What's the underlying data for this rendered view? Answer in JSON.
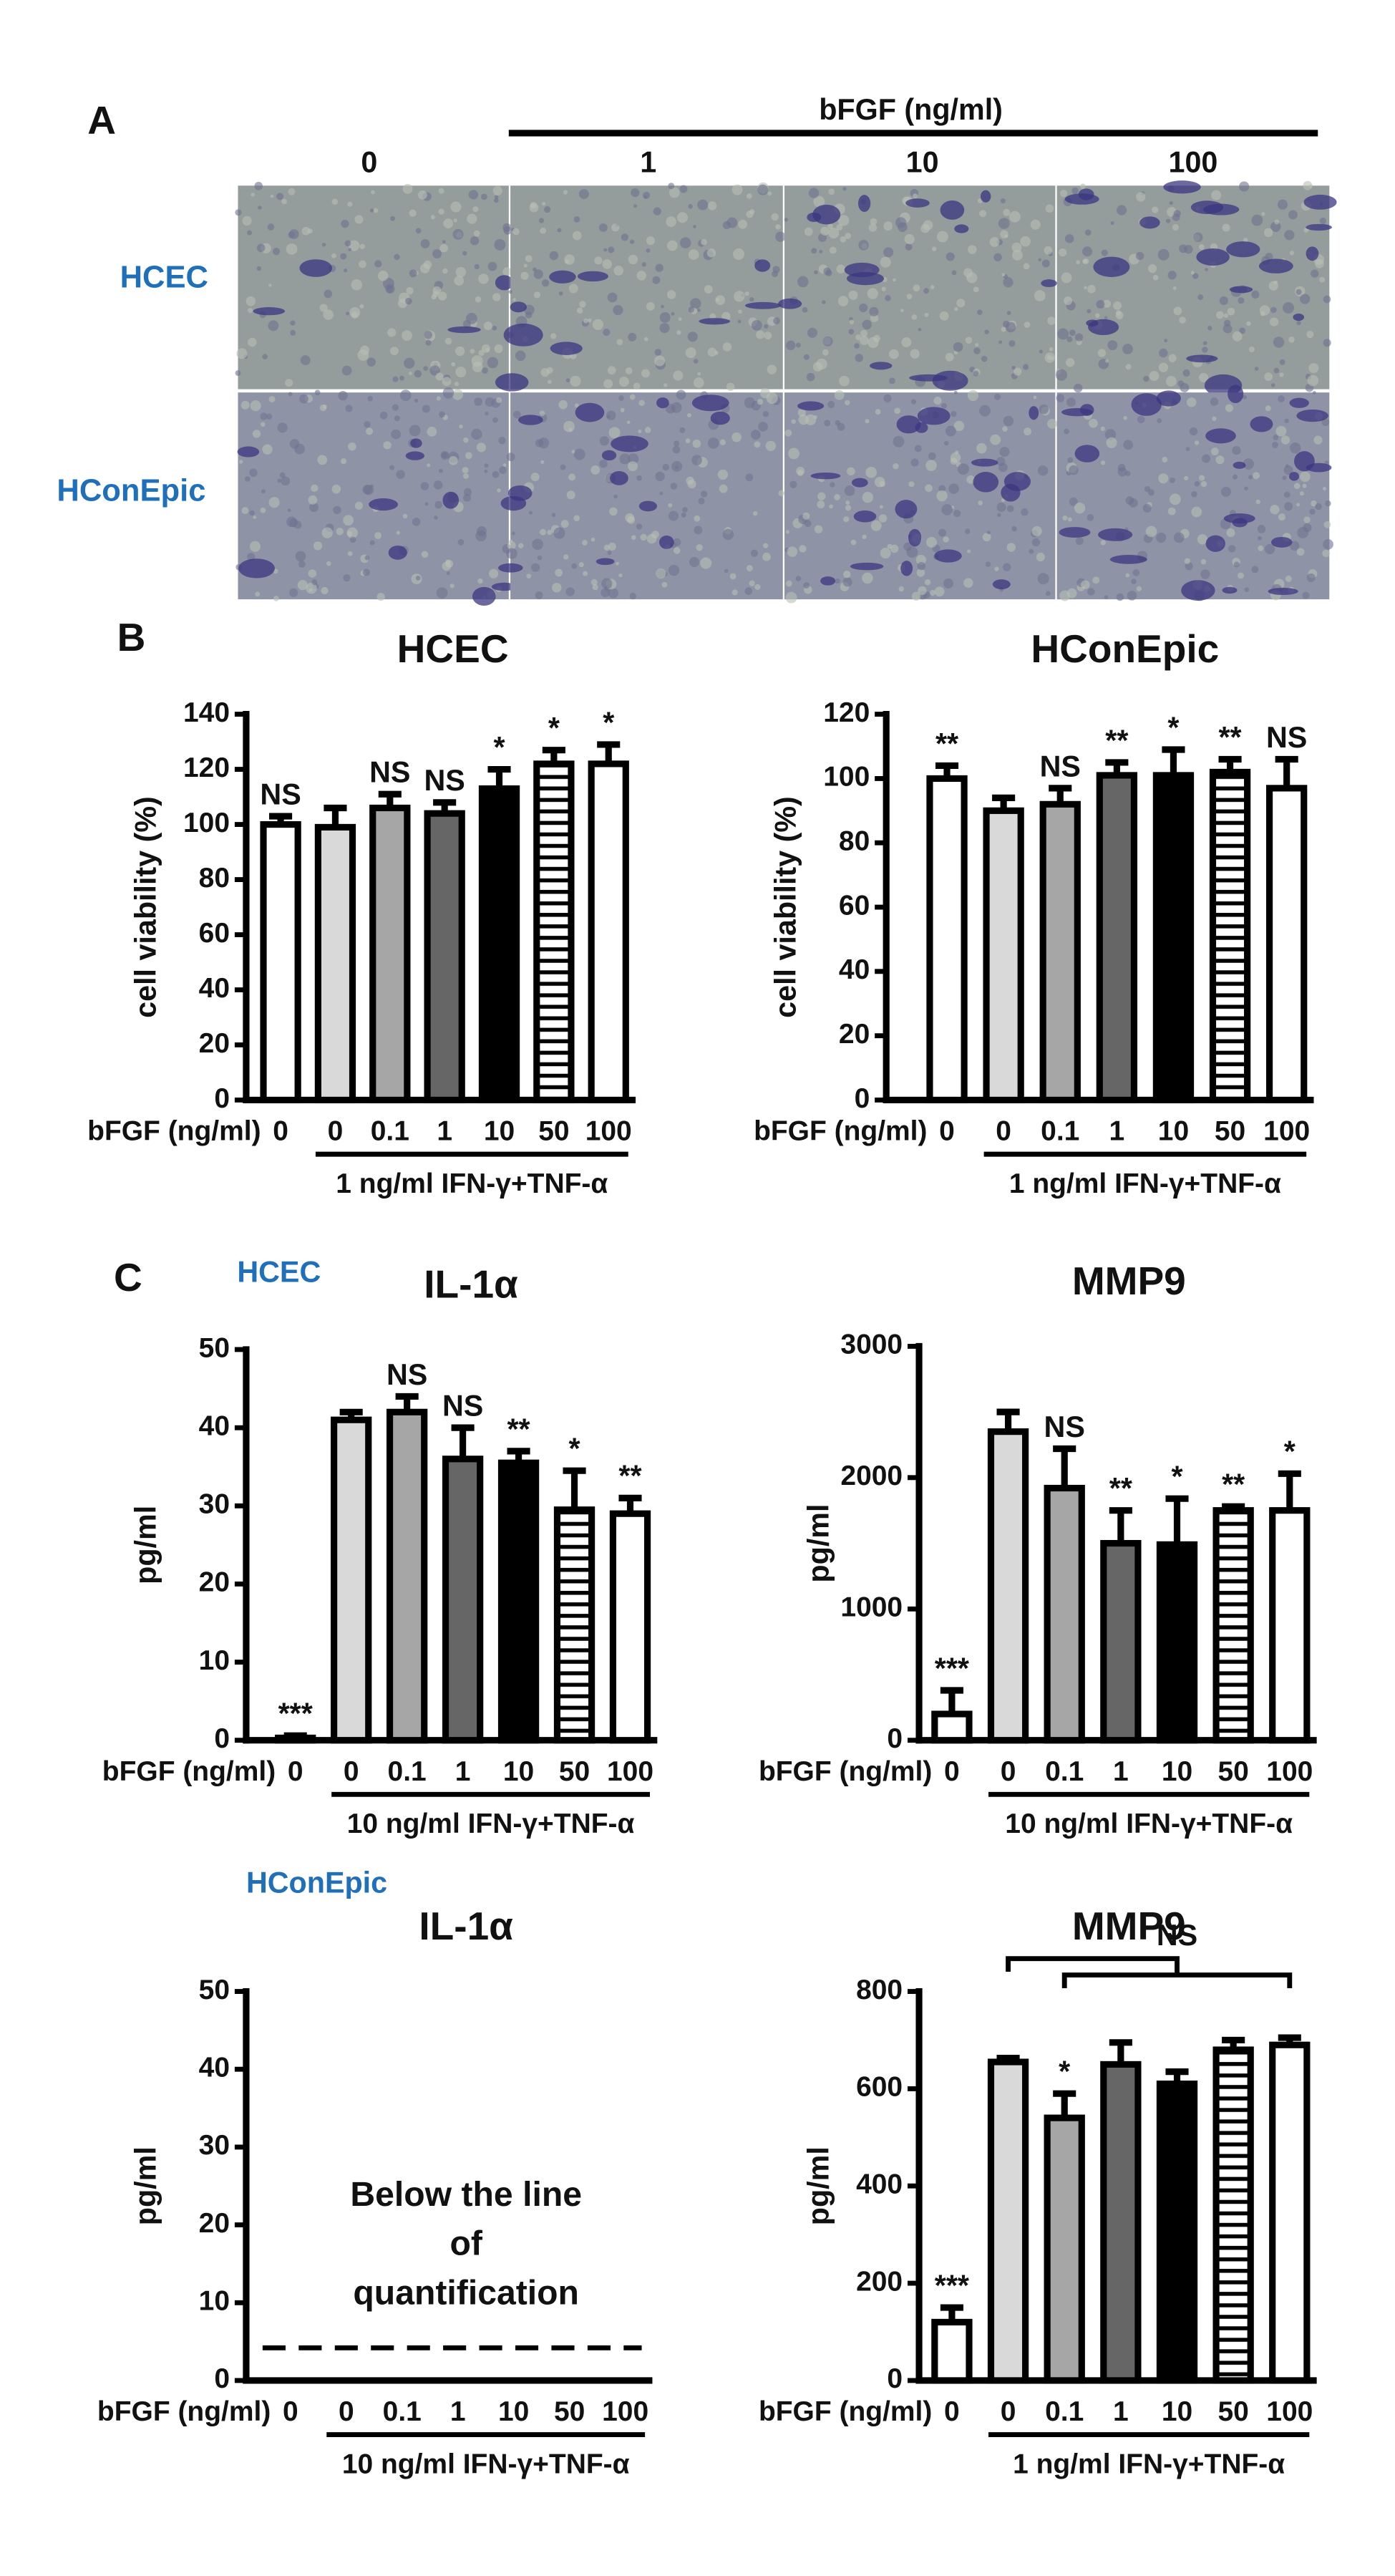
{
  "panel_a": {
    "letter": "A",
    "group_label": "bFGF (ng/ml)",
    "columns": [
      "0",
      "1",
      "10",
      "100"
    ],
    "rows": [
      "HCEC",
      "HConEpic"
    ]
  },
  "panel_b_letter": "B",
  "panel_c_letter": "C",
  "section_labels": [
    "HCEC",
    "HConEpic"
  ],
  "chart_data": [
    {
      "type": "bar",
      "title": "HCEC",
      "ylabel": "cell viability (%)",
      "xlabel": "bFGF (ng/ml)",
      "treatment": "1 ng/ml IFN-γ+TNF-α",
      "categories": [
        "0",
        "0",
        "0.1",
        "1",
        "10",
        "50",
        "100"
      ],
      "values": [
        100,
        99,
        106,
        104,
        113,
        122,
        122
      ],
      "errors": [
        3,
        7,
        5,
        4,
        7,
        5,
        7
      ],
      "annotations": [
        "NS",
        null,
        "NS",
        "NS",
        "*",
        "*",
        "*"
      ],
      "colors": [
        "#ffffff",
        "#d9d9d9",
        "#a6a6a6",
        "#666666",
        "#000000",
        "#ffffff",
        "#ffffff"
      ],
      "hatch": [
        false,
        false,
        false,
        false,
        false,
        true,
        false
      ],
      "ylim": [
        0,
        140
      ],
      "yticks": [
        0,
        20,
        40,
        60,
        80,
        100,
        120,
        140
      ]
    },
    {
      "type": "bar",
      "title": "HConEpic",
      "ylabel": "cell viability (%)",
      "xlabel": "bFGF (ng/ml)",
      "treatment": "1 ng/ml IFN-γ+TNF-α",
      "categories": [
        "0",
        "0",
        "0.1",
        "1",
        "10",
        "50",
        "100"
      ],
      "values": [
        100,
        90,
        92,
        101,
        101,
        102,
        97
      ],
      "errors": [
        4,
        4,
        5,
        4,
        8,
        4,
        9
      ],
      "annotations": [
        "**",
        null,
        "NS",
        "**",
        "*",
        "**",
        "NS"
      ],
      "colors": [
        "#ffffff",
        "#d9d9d9",
        "#a6a6a6",
        "#666666",
        "#000000",
        "#ffffff",
        "#ffffff"
      ],
      "hatch": [
        false,
        false,
        false,
        false,
        false,
        true,
        false
      ],
      "ylim": [
        0,
        120
      ],
      "yticks": [
        0,
        20,
        40,
        60,
        80,
        100,
        120
      ]
    },
    {
      "type": "bar",
      "title": "IL-1α",
      "ylabel": "pg/ml",
      "xlabel": "bFGF (ng/ml)",
      "treatment": "10 ng/ml IFN-γ+TNF-α",
      "categories": [
        "0",
        "0",
        "0.1",
        "1",
        "10",
        "50",
        "100"
      ],
      "values": [
        0.3,
        41,
        42,
        36,
        35.5,
        29.5,
        29
      ],
      "errors": [
        0.3,
        1,
        2,
        4,
        1.5,
        5,
        2
      ],
      "annotations": [
        "***",
        null,
        "NS",
        "NS",
        "**",
        "*",
        "**"
      ],
      "colors": [
        "#ffffff",
        "#d9d9d9",
        "#a6a6a6",
        "#666666",
        "#000000",
        "#ffffff",
        "#ffffff"
      ],
      "hatch": [
        false,
        false,
        false,
        false,
        false,
        true,
        false
      ],
      "ylim": [
        0,
        50
      ],
      "yticks": [
        0,
        10,
        20,
        30,
        40,
        50
      ]
    },
    {
      "type": "bar",
      "title": "MMP9",
      "ylabel": "pg/ml",
      "xlabel": "bFGF (ng/ml)",
      "treatment": "10 ng/ml IFN-γ+TNF-α",
      "categories": [
        "0",
        "0",
        "0.1",
        "1",
        "10",
        "50",
        "100"
      ],
      "values": [
        200,
        2350,
        1920,
        1500,
        1490,
        1750,
        1750
      ],
      "errors": [
        180,
        150,
        300,
        250,
        350,
        30,
        280
      ],
      "annotations": [
        "***",
        null,
        "NS",
        "**",
        "*",
        "**",
        "*"
      ],
      "colors": [
        "#ffffff",
        "#d9d9d9",
        "#a6a6a6",
        "#666666",
        "#000000",
        "#ffffff",
        "#ffffff"
      ],
      "hatch": [
        false,
        false,
        false,
        false,
        false,
        true,
        false
      ],
      "ylim": [
        0,
        3000
      ],
      "yticks": [
        0,
        1000,
        2000,
        3000
      ]
    },
    {
      "type": "empty",
      "title": "IL-1α",
      "ylabel": "pg/ml",
      "xlabel": "bFGF (ng/ml)",
      "treatment": "10 ng/ml IFN-γ+TNF-α",
      "categories": [
        "0",
        "0",
        "0.1",
        "1",
        "10",
        "50",
        "100"
      ],
      "note_lines": [
        "Below the line",
        "of",
        "quantification"
      ],
      "lloq": 4.2,
      "ylim": [
        0,
        50
      ],
      "yticks": [
        0,
        10,
        20,
        30,
        40,
        50
      ]
    },
    {
      "type": "bar",
      "title": "MMP9",
      "ylabel": "pg/ml",
      "xlabel": "bFGF (ng/ml)",
      "treatment": "1 ng/ml IFN-γ+TNF-α",
      "categories": [
        "0",
        "0",
        "0.1",
        "1",
        "10",
        "50",
        "100"
      ],
      "values": [
        120,
        655,
        540,
        650,
        610,
        680,
        690
      ],
      "errors": [
        30,
        8,
        50,
        45,
        25,
        20,
        15
      ],
      "annotations": [
        "***",
        null,
        "*",
        null,
        null,
        null,
        null
      ],
      "bracket_label": "NS",
      "colors": [
        "#ffffff",
        "#d9d9d9",
        "#a6a6a6",
        "#666666",
        "#000000",
        "#ffffff",
        "#ffffff"
      ],
      "hatch": [
        false,
        false,
        false,
        false,
        false,
        true,
        false
      ],
      "ylim": [
        0,
        800
      ],
      "yticks": [
        0,
        200,
        400,
        600,
        800
      ]
    }
  ]
}
